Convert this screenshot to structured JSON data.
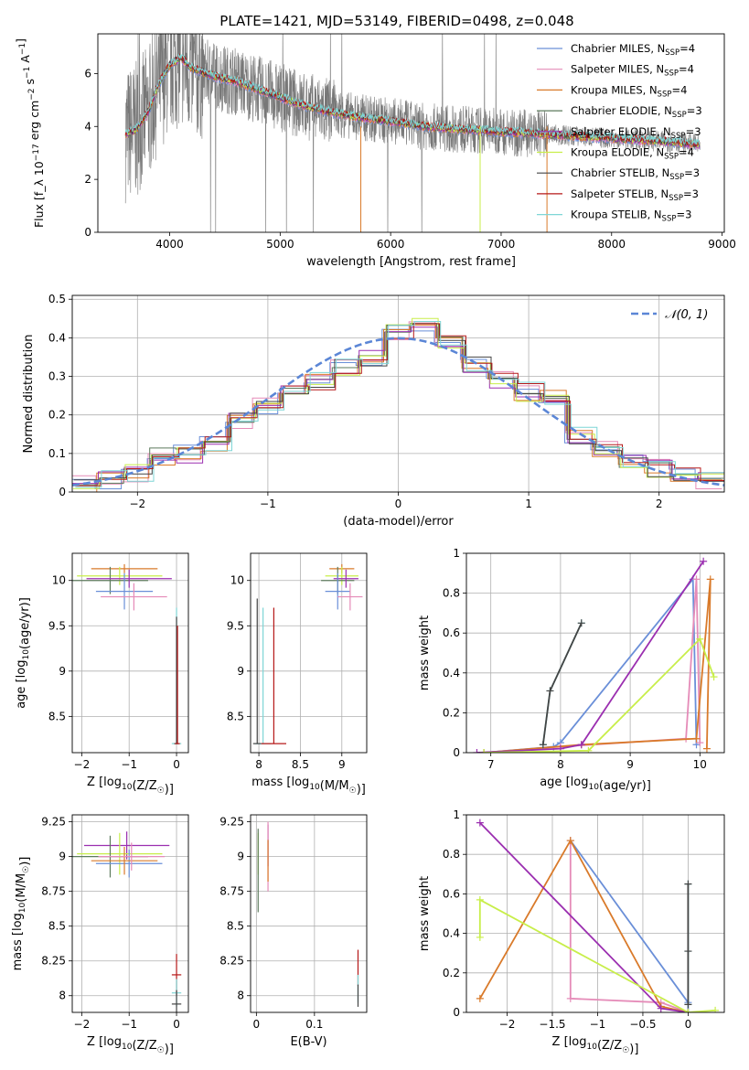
{
  "figure_title": "PLATE=1421, MJD=53149, FIBERID=0498, z=0.048",
  "colors": {
    "Chabrier MILES": "#6a8fd8",
    "Salpeter MILES": "#e58bb8",
    "Kroupa MILES": "#d97a2a",
    "Chabrier ELODIE": "#5c7a5c",
    "Salpeter ELODIE": "#9b2fb0",
    "Kroupa ELODIE": "#c8ee4a",
    "Chabrier STELIB": "#444444",
    "Salpeter STELIB": "#b51818",
    "Kroupa STELIB": "#7fd6d6",
    "gaussian": "#5b86d6",
    "data": "#777777"
  },
  "chart_data": [
    {
      "id": "spectrum",
      "type": "line",
      "xlabel": "wavelength [Angstrom, rest frame]",
      "ylabel": "Flux [f_λ 10^-17 erg cm^-2 s^-1 A^-1]",
      "xlim": [
        3350,
        9020
      ],
      "ylim": [
        0,
        7.5
      ],
      "xticks": [
        4000,
        5000,
        6000,
        7000,
        8000,
        9000
      ],
      "yticks": [
        0,
        2,
        4,
        6
      ],
      "grid": false,
      "legend_position": "top-right",
      "legend": [
        {
          "series": "Chabrier MILES",
          "label": "Chabrier MILES, N",
          "sub": "SSP",
          "suffix": "=4"
        },
        {
          "series": "Salpeter MILES",
          "label": "Salpeter MILES, N",
          "sub": "SSP",
          "suffix": "=4"
        },
        {
          "series": "Kroupa MILES",
          "label": "Kroupa MILES, N",
          "sub": "SSP",
          "suffix": "=4"
        },
        {
          "series": "Chabrier ELODIE",
          "label": "Chabrier ELODIE, N",
          "sub": "SSP",
          "suffix": "=3"
        },
        {
          "series": "Salpeter ELODIE",
          "label": "Salpeter ELODIE, N",
          "sub": "SSP",
          "suffix": "=3"
        },
        {
          "series": "Kroupa ELODIE",
          "label": "Kroupa ELODIE, N",
          "sub": "SSP",
          "suffix": "=4"
        },
        {
          "series": "Chabrier STELIB",
          "label": "Chabrier STELIB, N",
          "sub": "SSP",
          "suffix": "=3"
        },
        {
          "series": "Salpeter STELIB",
          "label": "Salpeter STELIB, N",
          "sub": "SSP",
          "suffix": "=3"
        },
        {
          "series": "Kroupa STELIB",
          "label": "Kroupa STELIB, N",
          "sub": "SSP",
          "suffix": "=3"
        }
      ],
      "model_continuum": {
        "x": [
          3600,
          3700,
          3800,
          3900,
          4000,
          4100,
          4200,
          4400,
          4600,
          4800,
          5000,
          5200,
          5500,
          5800,
          6000,
          6300,
          6600,
          7000,
          7400,
          7800,
          8200,
          8600,
          8800
        ],
        "y": [
          3.7,
          3.9,
          4.5,
          5.6,
          6.3,
          6.6,
          6.2,
          5.9,
          5.7,
          5.4,
          5.1,
          4.8,
          4.5,
          4.3,
          4.2,
          4.0,
          3.9,
          3.8,
          3.7,
          3.6,
          3.5,
          3.4,
          3.3
        ]
      },
      "noisy_data": {
        "x": [
          3580,
          3650,
          3700,
          3750,
          3800,
          3850,
          3900,
          3950,
          4000,
          4050,
          4100,
          4150,
          4200,
          4250,
          4300,
          4400,
          4500,
          4600,
          4700,
          4800,
          4900,
          5000,
          5100,
          5200,
          5300,
          5400,
          5500,
          5600,
          5700,
          5800,
          5900,
          6000,
          6100,
          6200,
          6300,
          6400,
          6500,
          6600,
          6700,
          6800,
          6900,
          7000,
          7100,
          7200,
          7300,
          7400
        ],
        "y": [
          3.5,
          2.0,
          7.2,
          4.9,
          0.3,
          7.5,
          3.1,
          6.8,
          5.2,
          7.0,
          4.6,
          6.9,
          5.0,
          6.7,
          5.5,
          6.2,
          5.1,
          6.4,
          4.8,
          5.9,
          4.2,
          5.6,
          4.5,
          5.3,
          4.0,
          4.9,
          4.3,
          4.7,
          3.9,
          4.6,
          3.6,
          4.8,
          3.8,
          4.4,
          3.5,
          4.3,
          3.6,
          4.4,
          3.2,
          4.5,
          3.4,
          4.1,
          3.3,
          4.2,
          3.0,
          3.9
        ]
      }
    },
    {
      "id": "residuals",
      "type": "line",
      "xlabel": "(data-model)/error",
      "ylabel": "Normed distribution",
      "xlim": [
        -2.5,
        2.5
      ],
      "ylim": [
        0,
        0.51
      ],
      "xticks": [
        -2,
        -1,
        0,
        1,
        2
      ],
      "yticks": [
        0.0,
        0.1,
        0.2,
        0.3,
        0.4,
        0.5
      ],
      "grid": true,
      "legend_position": "top-right",
      "gaussian_label": "𝒩(0, 1)",
      "histogram": {
        "bins": [
          -2.5,
          -2.3,
          -2.1,
          -1.9,
          -1.7,
          -1.5,
          -1.3,
          -1.1,
          -0.9,
          -0.7,
          -0.5,
          -0.3,
          -0.1,
          0.1,
          0.3,
          0.5,
          0.7,
          0.9,
          1.1,
          1.3,
          1.5,
          1.7,
          1.9,
          2.1,
          2.3,
          2.5
        ],
        "heights": [
          0.02,
          0.03,
          0.05,
          0.09,
          0.1,
          0.13,
          0.18,
          0.22,
          0.27,
          0.29,
          0.32,
          0.35,
          0.41,
          0.44,
          0.38,
          0.33,
          0.29,
          0.26,
          0.24,
          0.15,
          0.11,
          0.08,
          0.06,
          0.04,
          0.03
        ]
      }
    },
    {
      "id": "age_vs_Z",
      "type": "scatter",
      "xlabel": "Z [log10(Z/Z☉)]",
      "ylabel": "age [log10(age/yr)]",
      "xlim": [
        -2.2,
        0.25
      ],
      "ylim": [
        8.1,
        10.3
      ],
      "xticks": [
        -2,
        -1,
        0
      ],
      "yticks": [
        8.5,
        9.0,
        9.5,
        10.0
      ],
      "grid": true,
      "series": [
        {
          "name": "Kroupa MILES",
          "x": -1.1,
          "y": 10.13,
          "xerr": 0.7,
          "yerr": 0.05
        },
        {
          "name": "Kroupa ELODIE",
          "x": -1.2,
          "y": 10.05,
          "xerr": 0.9,
          "yerr": 0.1
        },
        {
          "name": "Chabrier ELODIE",
          "x": -1.4,
          "y": 10.0,
          "xerr": 0.8,
          "yerr": 0.15
        },
        {
          "name": "Salpeter ELODIE",
          "x": -1.0,
          "y": 10.02,
          "xerr": 0.9,
          "yerr": 0.1
        },
        {
          "name": "Chabrier MILES",
          "x": -1.1,
          "y": 9.88,
          "xerr": 0.6,
          "yerr": 0.2
        },
        {
          "name": "Salpeter MILES",
          "x": -0.9,
          "y": 9.82,
          "xerr": 0.7,
          "yerr": 0.15
        },
        {
          "name": "Kroupa STELIB",
          "x": 0.0,
          "y": 8.2,
          "xerr": 0.1,
          "yerr": 1.5
        },
        {
          "name": "Chabrier STELIB",
          "x": 0.0,
          "y": 8.2,
          "xerr": 0.05,
          "yerr": 1.4
        },
        {
          "name": "Salpeter STELIB",
          "x": 0.02,
          "y": 8.2,
          "xerr": 0.05,
          "yerr": 1.3
        }
      ]
    },
    {
      "id": "age_vs_mass",
      "type": "scatter",
      "xlabel": "mass [log10(M/M☉)]",
      "ylabel": "",
      "xlim": [
        7.9,
        9.3
      ],
      "ylim": [
        8.1,
        10.3
      ],
      "xticks": [
        8.0,
        8.5,
        9.0
      ],
      "yticks": [
        8.5,
        9.0,
        9.5,
        10.0
      ],
      "grid": true,
      "series": [
        {
          "name": "Kroupa MILES",
          "x": 9.0,
          "y": 10.13,
          "xerr": 0.15,
          "yerr": 0.05
        },
        {
          "name": "Kroupa ELODIE",
          "x": 9.0,
          "y": 10.05,
          "xerr": 0.2,
          "yerr": 0.1
        },
        {
          "name": "Chabrier ELODIE",
          "x": 8.95,
          "y": 10.0,
          "xerr": 0.2,
          "yerr": 0.15
        },
        {
          "name": "Salpeter ELODIE",
          "x": 9.05,
          "y": 10.02,
          "xerr": 0.15,
          "yerr": 0.1
        },
        {
          "name": "Chabrier MILES",
          "x": 8.95,
          "y": 9.88,
          "xerr": 0.15,
          "yerr": 0.2
        },
        {
          "name": "Salpeter MILES",
          "x": 9.1,
          "y": 9.82,
          "xerr": 0.15,
          "yerr": 0.15
        },
        {
          "name": "Kroupa STELIB",
          "x": 8.05,
          "y": 8.2,
          "xerr": 0.1,
          "yerr": 1.5
        },
        {
          "name": "Chabrier STELIB",
          "x": 7.98,
          "y": 8.2,
          "xerr": 0.05,
          "yerr": 1.6
        },
        {
          "name": "Salpeter STELIB",
          "x": 8.18,
          "y": 8.2,
          "xerr": 0.15,
          "yerr": 1.5
        }
      ]
    },
    {
      "id": "mass_weight_vs_age",
      "type": "line",
      "xlabel": "age [log10(age/yr)]",
      "ylabel": "mass weight",
      "xlim": [
        6.65,
        10.35
      ],
      "ylim": [
        0,
        1.0
      ],
      "xticks": [
        7,
        8,
        9,
        10
      ],
      "yticks": [
        0.0,
        0.2,
        0.4,
        0.6,
        0.8,
        1.0
      ],
      "grid": true,
      "series": [
        {
          "name": "Chabrier MILES",
          "x": [
            6.9,
            7.9,
            8.0,
            9.9,
            9.95
          ],
          "y": [
            0.0,
            0.03,
            0.05,
            0.87,
            0.04
          ]
        },
        {
          "name": "Salpeter MILES",
          "x": [
            6.9,
            8.0,
            9.8,
            9.95,
            10.0
          ],
          "y": [
            0.0,
            0.03,
            0.07,
            0.87,
            0.05
          ]
        },
        {
          "name": "Kroupa MILES",
          "x": [
            6.9,
            8.3,
            9.95,
            10.15,
            10.1
          ],
          "y": [
            0.0,
            0.04,
            0.07,
            0.87,
            0.02
          ]
        },
        {
          "name": "Salpeter ELODIE",
          "x": [
            6.8,
            8.0,
            8.3,
            10.05
          ],
          "y": [
            0.0,
            0.02,
            0.04,
            0.96
          ]
        },
        {
          "name": "Kroupa ELODIE",
          "x": [
            6.9,
            8.4,
            10.0,
            10.2
          ],
          "y": [
            0.0,
            0.01,
            0.57,
            0.38
          ]
        },
        {
          "name": "Kroupa STELIB",
          "x": [
            7.75,
            7.85,
            8.3
          ],
          "y": [
            0.04,
            0.31,
            0.65
          ]
        },
        {
          "name": "Chabrier STELIB",
          "x": [
            7.75,
            7.85,
            8.3
          ],
          "y": [
            0.04,
            0.31,
            0.65
          ]
        }
      ]
    },
    {
      "id": "mass_vs_Z",
      "type": "scatter",
      "xlabel": "Z [log10(Z/Z☉)]",
      "ylabel": "mass [log10(M/M☉)]",
      "xlim": [
        -2.2,
        0.25
      ],
      "ylim": [
        7.88,
        9.3
      ],
      "xticks": [
        -2,
        -1,
        0
      ],
      "yticks": [
        8.0,
        8.25,
        8.5,
        8.75,
        9.0,
        9.25
      ],
      "grid": true,
      "series": [
        {
          "name": "Salpeter ELODIE",
          "x": -1.05,
          "y": 9.08,
          "xerr": 0.9,
          "yerr": 0.1
        },
        {
          "name": "Kroupa ELODIE",
          "x": -1.2,
          "y": 9.02,
          "xerr": 0.9,
          "yerr": 0.15
        },
        {
          "name": "Chabrier ELODIE",
          "x": -1.4,
          "y": 9.0,
          "xerr": 0.8,
          "yerr": 0.15
        },
        {
          "name": "Chabrier MILES",
          "x": -1.0,
          "y": 8.95,
          "xerr": 0.7,
          "yerr": 0.1
        },
        {
          "name": "Kroupa MILES",
          "x": -1.1,
          "y": 8.97,
          "xerr": 0.7,
          "yerr": 0.1
        },
        {
          "name": "Salpeter MILES",
          "x": -0.95,
          "y": 9.0,
          "xerr": 0.7,
          "yerr": 0.1
        },
        {
          "name": "Salpeter STELIB",
          "x": 0.0,
          "y": 8.15,
          "xerr": 0.1,
          "yerr": 0.15
        },
        {
          "name": "Kroupa STELIB",
          "x": 0.0,
          "y": 8.02,
          "xerr": 0.1,
          "yerr": 0.1
        },
        {
          "name": "Chabrier STELIB",
          "x": 0.0,
          "y": 7.94,
          "xerr": 0.1,
          "yerr": 0.1
        }
      ]
    },
    {
      "id": "mass_vs_EBV",
      "type": "scatter",
      "xlabel": "E(B-V)",
      "ylabel": "",
      "xlim": [
        -0.01,
        0.19
      ],
      "ylim": [
        7.88,
        9.3
      ],
      "xticks": [
        0.0,
        0.1
      ],
      "yticks": [
        8.0,
        8.25,
        8.5,
        8.75,
        9.0,
        9.25
      ],
      "grid": true,
      "series": [
        {
          "name": "Salpeter ELODIE",
          "x": 0.02,
          "y": 9.08,
          "yerr": 0.15
        },
        {
          "name": "Kroupa ELODIE",
          "x": 0.003,
          "y": 9.02,
          "yerr": 0.15
        },
        {
          "name": "Chabrier ELODIE",
          "x": 0.003,
          "y": 8.9,
          "yerr": 0.3
        },
        {
          "name": "Salpeter MILES",
          "x": 0.02,
          "y": 9.0,
          "yerr": 0.25
        },
        {
          "name": "Kroupa MILES",
          "x": 0.02,
          "y": 8.97,
          "yerr": 0.15
        },
        {
          "name": "Salpeter STELIB",
          "x": 0.175,
          "y": 8.2,
          "yerr": 0.13
        },
        {
          "name": "Kroupa STELIB",
          "x": 0.175,
          "y": 8.05,
          "yerr": 0.1
        },
        {
          "name": "Chabrier STELIB",
          "x": 0.175,
          "y": 8.0,
          "yerr": 0.08
        }
      ]
    },
    {
      "id": "mass_weight_vs_Z",
      "type": "line",
      "xlabel": "Z [log10(Z/Z☉)]",
      "ylabel": "mass weight",
      "xlim": [
        -2.45,
        0.4
      ],
      "ylim": [
        0,
        1.0
      ],
      "xticks": [
        -2.0,
        -1.5,
        -1.0,
        -0.5,
        0.0
      ],
      "yticks": [
        0.0,
        0.2,
        0.4,
        0.6,
        0.8,
        1.0
      ],
      "grid": true,
      "series": [
        {
          "name": "Chabrier MILES",
          "x": [
            -1.3,
            0.0,
            0.0
          ],
          "y": [
            0.87,
            0.05,
            0.0
          ]
        },
        {
          "name": "Salpeter MILES",
          "x": [
            -1.3,
            -1.3,
            -0.3,
            0.0
          ],
          "y": [
            0.87,
            0.07,
            0.05,
            0.0
          ]
        },
        {
          "name": "Kroupa MILES",
          "x": [
            -2.3,
            -1.3,
            -0.3,
            0.0
          ],
          "y": [
            0.07,
            0.87,
            0.03,
            0.0
          ]
        },
        {
          "name": "Salpeter ELODIE",
          "x": [
            -2.3,
            -0.3,
            0.0
          ],
          "y": [
            0.96,
            0.02,
            0.0
          ]
        },
        {
          "name": "Kroupa ELODIE",
          "x": [
            -2.3,
            -2.3,
            0.0,
            0.3
          ],
          "y": [
            0.38,
            0.57,
            0.0,
            0.01
          ]
        },
        {
          "name": "Kroupa STELIB",
          "x": [
            0.0,
            0.0,
            0.0
          ],
          "y": [
            0.04,
            0.31,
            0.65
          ]
        },
        {
          "name": "Chabrier STELIB",
          "x": [
            0.0,
            0.0,
            0.0
          ],
          "y": [
            0.04,
            0.31,
            0.65
          ]
        }
      ]
    }
  ]
}
